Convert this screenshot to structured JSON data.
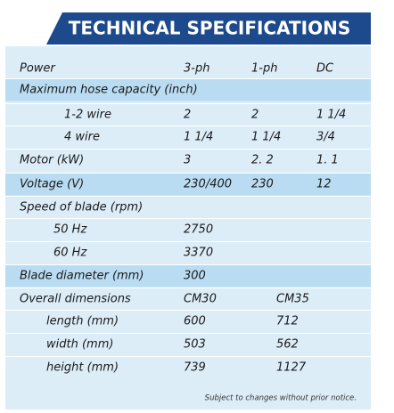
{
  "header": {
    "title": "TECHNICAL SPECIFICATIONS"
  },
  "table": {
    "rows": [
      {
        "label": "Power",
        "cells": [
          "3-ph",
          "1-ph",
          "DC"
        ]
      },
      {
        "label": "Maximum hose capacity (inch)",
        "cells": []
      },
      {
        "label": "1-2 wire",
        "cells": [
          "2",
          "2",
          "1 1/4"
        ]
      },
      {
        "label": "4 wire",
        "cells": [
          "1 1/4",
          "1 1/4",
          "3/4"
        ]
      },
      {
        "label": "Motor (kW)",
        "cells": [
          "3",
          "2. 2",
          "1. 1"
        ]
      },
      {
        "label": "Voltage (V)",
        "cells": [
          "230/400",
          "230",
          "12"
        ]
      },
      {
        "label": "Speed of blade (rpm)",
        "cells": []
      },
      {
        "label": "50 Hz",
        "cells": [
          "2750"
        ]
      },
      {
        "label": "60 Hz",
        "cells": [
          "3370"
        ]
      },
      {
        "label": "Blade diameter (mm)",
        "cells": [
          "300"
        ]
      },
      {
        "label": "Overall dimensions",
        "cells": [
          "CM30",
          "CM35"
        ]
      },
      {
        "label": "length (mm)",
        "cells": [
          "600",
          "712"
        ]
      },
      {
        "label": "width (mm)",
        "cells": [
          "503",
          "562"
        ]
      },
      {
        "label": "height (mm)",
        "cells": [
          "739",
          "1127"
        ]
      }
    ]
  },
  "footer": {
    "note": "Subject to changes without prior notice."
  }
}
